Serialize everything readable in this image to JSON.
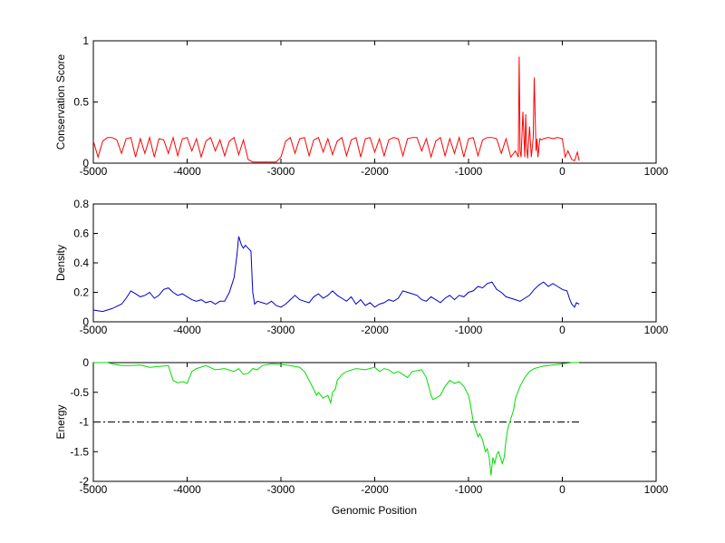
{
  "chart_data": [
    {
      "type": "line",
      "ylabel": "Conservation Score",
      "xlim": [
        -5000,
        1000
      ],
      "ylim": [
        0,
        1
      ],
      "xticks": [
        -5000,
        -4000,
        -3000,
        -2000,
        -1000,
        0,
        1000
      ],
      "yticks": [
        0,
        0.5,
        1
      ],
      "ytick_labels": [
        "0",
        "0.5",
        "1"
      ],
      "color": "#ff0000",
      "series": [
        {
          "x": [
            -5000,
            -4950,
            -4900,
            -4850,
            -4800,
            -4750,
            -4700,
            -4650,
            -4600,
            -4550,
            -4500,
            -4450,
            -4400,
            -4350,
            -4300,
            -4250,
            -4200,
            -4150,
            -4100,
            -4050,
            -4000,
            -3950,
            -3900,
            -3850,
            -3800,
            -3750,
            -3700,
            -3650,
            -3600,
            -3550,
            -3500,
            -3450,
            -3400,
            -3350,
            -3300,
            -3250,
            -3200,
            -3150,
            -3100,
            -3050,
            -3000,
            -2950,
            -2900,
            -2850,
            -2800,
            -2750,
            -2700,
            -2650,
            -2600,
            -2550,
            -2500,
            -2450,
            -2400,
            -2350,
            -2300,
            -2250,
            -2200,
            -2150,
            -2100,
            -2050,
            -2000,
            -1950,
            -1900,
            -1850,
            -1800,
            -1750,
            -1700,
            -1650,
            -1600,
            -1550,
            -1500,
            -1450,
            -1400,
            -1350,
            -1300,
            -1250,
            -1200,
            -1150,
            -1100,
            -1050,
            -1000,
            -950,
            -900,
            -850,
            -800,
            -750,
            -700,
            -650,
            -600,
            -550,
            -500,
            -470,
            -460,
            -450,
            -440,
            -420,
            -400,
            -390,
            -380,
            -370,
            -350,
            -330,
            -310,
            -300,
            -280,
            -270,
            -260,
            -240,
            -220,
            -200,
            -150,
            -100,
            -50,
            0,
            30,
            60,
            100,
            130,
            160,
            180
          ],
          "y": [
            0.18,
            0.05,
            0.18,
            0.21,
            0.21,
            0.19,
            0.08,
            0.2,
            0.21,
            0.05,
            0.2,
            0.08,
            0.21,
            0.05,
            0.2,
            0.19,
            0.08,
            0.21,
            0.06,
            0.2,
            0.21,
            0.1,
            0.2,
            0.05,
            0.18,
            0.21,
            0.1,
            0.19,
            0.06,
            0.18,
            0.21,
            0.07,
            0.19,
            0.03,
            0.01,
            0.01,
            0.01,
            0.01,
            0.01,
            0.01,
            0.05,
            0.18,
            0.21,
            0.08,
            0.2,
            0.21,
            0.06,
            0.19,
            0.21,
            0.09,
            0.2,
            0.07,
            0.18,
            0.21,
            0.06,
            0.19,
            0.21,
            0.05,
            0.2,
            0.21,
            0.09,
            0.2,
            0.06,
            0.19,
            0.21,
            0.2,
            0.06,
            0.2,
            0.21,
            0.21,
            0.1,
            0.2,
            0.05,
            0.18,
            0.21,
            0.06,
            0.2,
            0.08,
            0.21,
            0.05,
            0.2,
            0.21,
            0.06,
            0.19,
            0.21,
            0.21,
            0.2,
            0.08,
            0.2,
            0.05,
            0.1,
            0.05,
            0.87,
            0.1,
            0.05,
            0.42,
            0.05,
            0.4,
            0.12,
            0.04,
            0.3,
            0.05,
            0.21,
            0.7,
            0.1,
            0.2,
            0.05,
            0.2,
            0.19,
            0.2,
            0.21,
            0.2,
            0.21,
            0.2,
            0.05,
            0.1,
            0.03,
            0.02,
            0.09,
            0.02
          ]
        }
      ]
    },
    {
      "type": "line",
      "ylabel": "Density",
      "xlim": [
        -5000,
        1000
      ],
      "ylim": [
        0,
        0.8
      ],
      "xticks": [
        -5000,
        -4000,
        -3000,
        -2000,
        -1000,
        0,
        1000
      ],
      "yticks": [
        0,
        0.2,
        0.4,
        0.6,
        0.8
      ],
      "ytick_labels": [
        "0",
        "0.2",
        "0.4",
        "0.6",
        "0.8"
      ],
      "color": "#0000cc",
      "series": [
        {
          "x": [
            -5000,
            -4900,
            -4800,
            -4700,
            -4650,
            -4600,
            -4550,
            -4500,
            -4450,
            -4400,
            -4350,
            -4300,
            -4250,
            -4200,
            -4150,
            -4100,
            -4050,
            -4000,
            -3950,
            -3900,
            -3850,
            -3800,
            -3750,
            -3700,
            -3650,
            -3600,
            -3550,
            -3500,
            -3470,
            -3450,
            -3420,
            -3400,
            -3380,
            -3350,
            -3320,
            -3300,
            -3280,
            -3250,
            -3200,
            -3150,
            -3100,
            -3050,
            -3000,
            -2950,
            -2900,
            -2850,
            -2800,
            -2750,
            -2700,
            -2650,
            -2600,
            -2550,
            -2500,
            -2450,
            -2400,
            -2350,
            -2300,
            -2250,
            -2200,
            -2150,
            -2100,
            -2050,
            -2000,
            -1950,
            -1900,
            -1850,
            -1800,
            -1750,
            -1700,
            -1650,
            -1600,
            -1550,
            -1500,
            -1450,
            -1400,
            -1350,
            -1300,
            -1250,
            -1200,
            -1150,
            -1100,
            -1050,
            -1000,
            -950,
            -900,
            -850,
            -800,
            -750,
            -700,
            -650,
            -600,
            -550,
            -500,
            -450,
            -400,
            -350,
            -300,
            -250,
            -200,
            -150,
            -100,
            -50,
            0,
            50,
            80,
            100,
            130,
            150,
            180
          ],
          "y": [
            0.08,
            0.07,
            0.09,
            0.12,
            0.16,
            0.21,
            0.19,
            0.17,
            0.18,
            0.2,
            0.16,
            0.18,
            0.22,
            0.23,
            0.2,
            0.18,
            0.19,
            0.17,
            0.15,
            0.14,
            0.15,
            0.13,
            0.14,
            0.12,
            0.14,
            0.14,
            0.2,
            0.3,
            0.45,
            0.58,
            0.52,
            0.5,
            0.52,
            0.5,
            0.48,
            0.2,
            0.12,
            0.14,
            0.13,
            0.12,
            0.14,
            0.11,
            0.1,
            0.12,
            0.15,
            0.18,
            0.15,
            0.14,
            0.13,
            0.17,
            0.19,
            0.16,
            0.18,
            0.21,
            0.18,
            0.16,
            0.14,
            0.17,
            0.12,
            0.15,
            0.11,
            0.13,
            0.1,
            0.12,
            0.13,
            0.15,
            0.14,
            0.16,
            0.21,
            0.2,
            0.19,
            0.18,
            0.15,
            0.14,
            0.17,
            0.15,
            0.13,
            0.16,
            0.18,
            0.15,
            0.18,
            0.17,
            0.2,
            0.21,
            0.24,
            0.23,
            0.26,
            0.27,
            0.22,
            0.2,
            0.17,
            0.16,
            0.15,
            0.14,
            0.16,
            0.18,
            0.22,
            0.25,
            0.27,
            0.24,
            0.26,
            0.24,
            0.22,
            0.21,
            0.15,
            0.12,
            0.1,
            0.13,
            0.12
          ]
        }
      ]
    },
    {
      "type": "line",
      "ylabel": "Energy",
      "xlabel": "Genomic Position",
      "xlim": [
        -5000,
        1000
      ],
      "ylim": [
        -2,
        0
      ],
      "xticks": [
        -5000,
        -4000,
        -3000,
        -2000,
        -1000,
        0,
        1000
      ],
      "yticks": [
        -2,
        -1.5,
        -1,
        -0.5,
        0
      ],
      "ytick_labels": [
        "-2",
        "-1.5",
        "-1",
        "-0.5",
        "0"
      ],
      "color": "#00dd00",
      "threshold": {
        "y": -1,
        "x_from": -5000,
        "x_to": 180,
        "style": "dash-dot",
        "color": "#000000"
      },
      "series": [
        {
          "x": [
            -5000,
            -4850,
            -4800,
            -4700,
            -4600,
            -4500,
            -4400,
            -4200,
            -4150,
            -4100,
            -4050,
            -4000,
            -3950,
            -3900,
            -3800,
            -3700,
            -3600,
            -3500,
            -3450,
            -3400,
            -3350,
            -3300,
            -3250,
            -3200,
            -3100,
            -3000,
            -2900,
            -2800,
            -2750,
            -2700,
            -2650,
            -2620,
            -2600,
            -2550,
            -2500,
            -2470,
            -2450,
            -2420,
            -2400,
            -2350,
            -2300,
            -2200,
            -2100,
            -2000,
            -1950,
            -1900,
            -1850,
            -1800,
            -1750,
            -1700,
            -1650,
            -1600,
            -1500,
            -1450,
            -1400,
            -1380,
            -1350,
            -1300,
            -1250,
            -1200,
            -1150,
            -1100,
            -1050,
            -1000,
            -980,
            -950,
            -920,
            -900,
            -880,
            -850,
            -820,
            -800,
            -780,
            -760,
            -740,
            -720,
            -700,
            -680,
            -660,
            -640,
            -620,
            -600,
            -580,
            -550,
            -520,
            -500,
            -450,
            -400,
            -350,
            -300,
            -250,
            -200,
            -150,
            -100,
            -50,
            0,
            50,
            100,
            150,
            180
          ],
          "y": [
            0,
            0,
            -0.02,
            -0.05,
            -0.05,
            -0.04,
            -0.08,
            -0.05,
            -0.3,
            -0.34,
            -0.32,
            -0.35,
            -0.15,
            -0.1,
            -0.05,
            -0.12,
            -0.1,
            -0.15,
            -0.1,
            -0.2,
            -0.18,
            -0.1,
            -0.12,
            -0.05,
            -0.02,
            -0.03,
            -0.05,
            -0.08,
            -0.15,
            -0.3,
            -0.45,
            -0.55,
            -0.5,
            -0.6,
            -0.55,
            -0.68,
            -0.5,
            -0.45,
            -0.3,
            -0.2,
            -0.15,
            -0.1,
            -0.12,
            -0.08,
            -0.15,
            -0.1,
            -0.12,
            -0.18,
            -0.15,
            -0.2,
            -0.25,
            -0.15,
            -0.12,
            -0.25,
            -0.55,
            -0.62,
            -0.6,
            -0.55,
            -0.4,
            -0.3,
            -0.35,
            -0.32,
            -0.4,
            -0.55,
            -0.7,
            -1.0,
            -1.15,
            -1.25,
            -1.2,
            -1.3,
            -1.5,
            -1.45,
            -1.6,
            -1.9,
            -1.6,
            -1.7,
            -1.55,
            -1.5,
            -1.6,
            -1.7,
            -1.6,
            -1.3,
            -1.1,
            -0.95,
            -0.8,
            -0.6,
            -0.4,
            -0.25,
            -0.15,
            -0.1,
            -0.08,
            -0.06,
            -0.05,
            -0.04,
            -0.03,
            -0.02,
            -0.01,
            0,
            0,
            0
          ]
        }
      ]
    }
  ]
}
